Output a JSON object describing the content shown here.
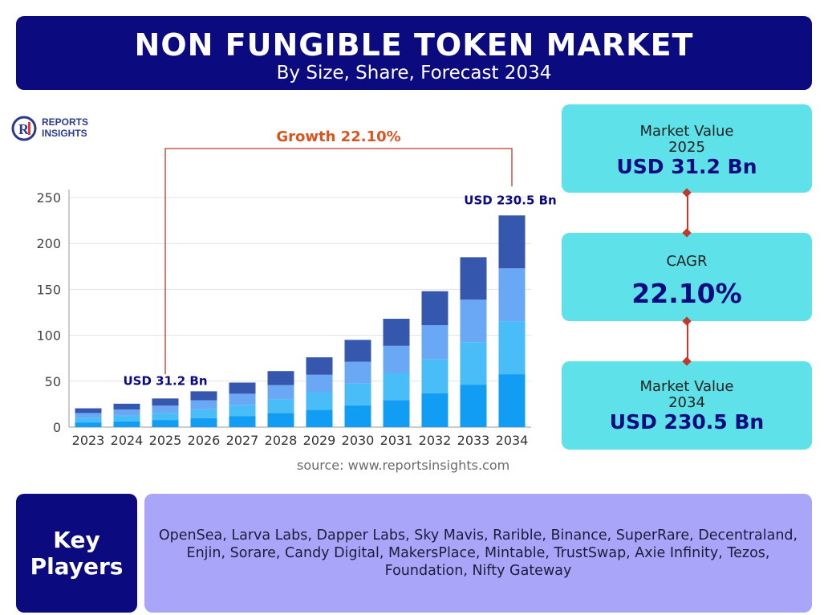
{
  "header": {
    "title": "NON FUNGIBLE TOKEN MARKET",
    "subtitle": "By Size, Share, Forecast 2034"
  },
  "logo": {
    "line1": "REPORTS",
    "line2": "INSIGHTS"
  },
  "chart_data": {
    "type": "bar",
    "stacked": true,
    "categories": [
      "2023",
      "2024",
      "2025",
      "2026",
      "2027",
      "2028",
      "2029",
      "2030",
      "2031",
      "2032",
      "2033",
      "2034"
    ],
    "totals": [
      20.5,
      25.5,
      31.2,
      39,
      48.5,
      61,
      76,
      95,
      118,
      148,
      185,
      230.5
    ],
    "share_fractions": [
      0.25,
      0.25,
      0.25,
      0.25
    ],
    "series_colors": [
      "#129df5",
      "#49bdf7",
      "#6aa8f6",
      "#3557ad"
    ],
    "ylim": [
      0,
      250
    ],
    "yticks": [
      0,
      50,
      100,
      150,
      200,
      250
    ],
    "grid": true,
    "annotations": {
      "growth": "Growth 22.10%",
      "start_label": "USD 31.2 Bn",
      "end_label": "USD 230.5 Bn"
    }
  },
  "source": "source: www.reportsinsights.com",
  "cards": {
    "value_2025": {
      "label": "Market Value",
      "year": "2025",
      "value": "USD 31.2 Bn"
    },
    "cagr": {
      "label": "CAGR",
      "value": "22.10%"
    },
    "value_2034": {
      "label": "Market Value",
      "year": "2034",
      "value": "USD 230.5 Bn"
    }
  },
  "key_players": {
    "heading_line1": "Key",
    "heading_line2": "Players",
    "list": "OpenSea, Larva Labs, Dapper Labs, Sky Mavis, Rarible, Binance, SuperRare, Decentraland, Enjin, Sorare, Candy Digital, MakersPlace, Mintable, TrustSwap, Axie Infinity, Tezos, Foundation, Nifty Gateway"
  },
  "colors": {
    "navy": "#0b0a7e",
    "cyan": "#5ee1e8",
    "lavender": "#a9a6fa",
    "accent_red": "#c0392b",
    "growth_text": "#d9541e"
  }
}
